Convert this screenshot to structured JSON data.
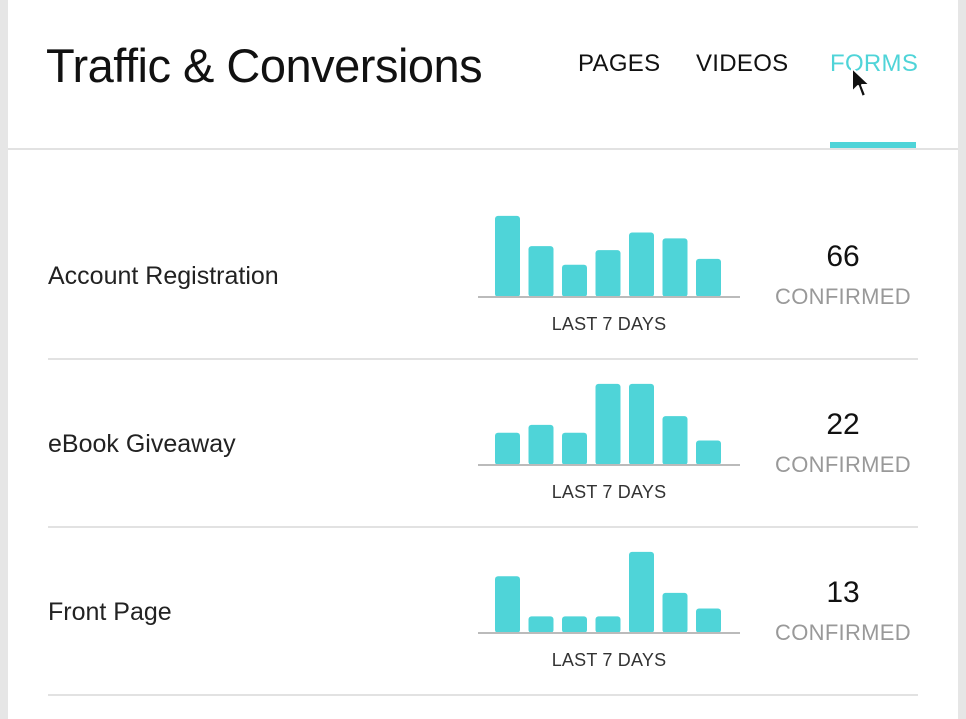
{
  "header": {
    "title": "Traffic & Conversions",
    "tabs": [
      {
        "label": "PAGES",
        "active": false
      },
      {
        "label": "VIDEOS",
        "active": false
      },
      {
        "label": "FORMS",
        "active": true
      }
    ]
  },
  "colors": {
    "accent": "#4fd4d8",
    "bar": "#4fd4d8",
    "muted_text": "#999999",
    "divider": "#e2e2e2"
  },
  "forms": [
    {
      "name": "Account Registration",
      "period_label": "LAST 7 DAYS",
      "count": "66",
      "status_label": "CONFIRMED",
      "daily_values": [
        83,
        52,
        33,
        48,
        66,
        60,
        39
      ]
    },
    {
      "name": "eBook Giveaway",
      "period_label": "LAST 7 DAYS",
      "count": "22",
      "status_label": "CONFIRMED",
      "daily_values": [
        33,
        41,
        33,
        83,
        83,
        50,
        25
      ]
    },
    {
      "name": "Front Page",
      "period_label": "LAST 7 DAYS",
      "count": "13",
      "status_label": "CONFIRMED",
      "daily_values": [
        58,
        17,
        17,
        17,
        83,
        41,
        25
      ]
    }
  ],
  "cursor_icon": "arrow-cursor-icon"
}
